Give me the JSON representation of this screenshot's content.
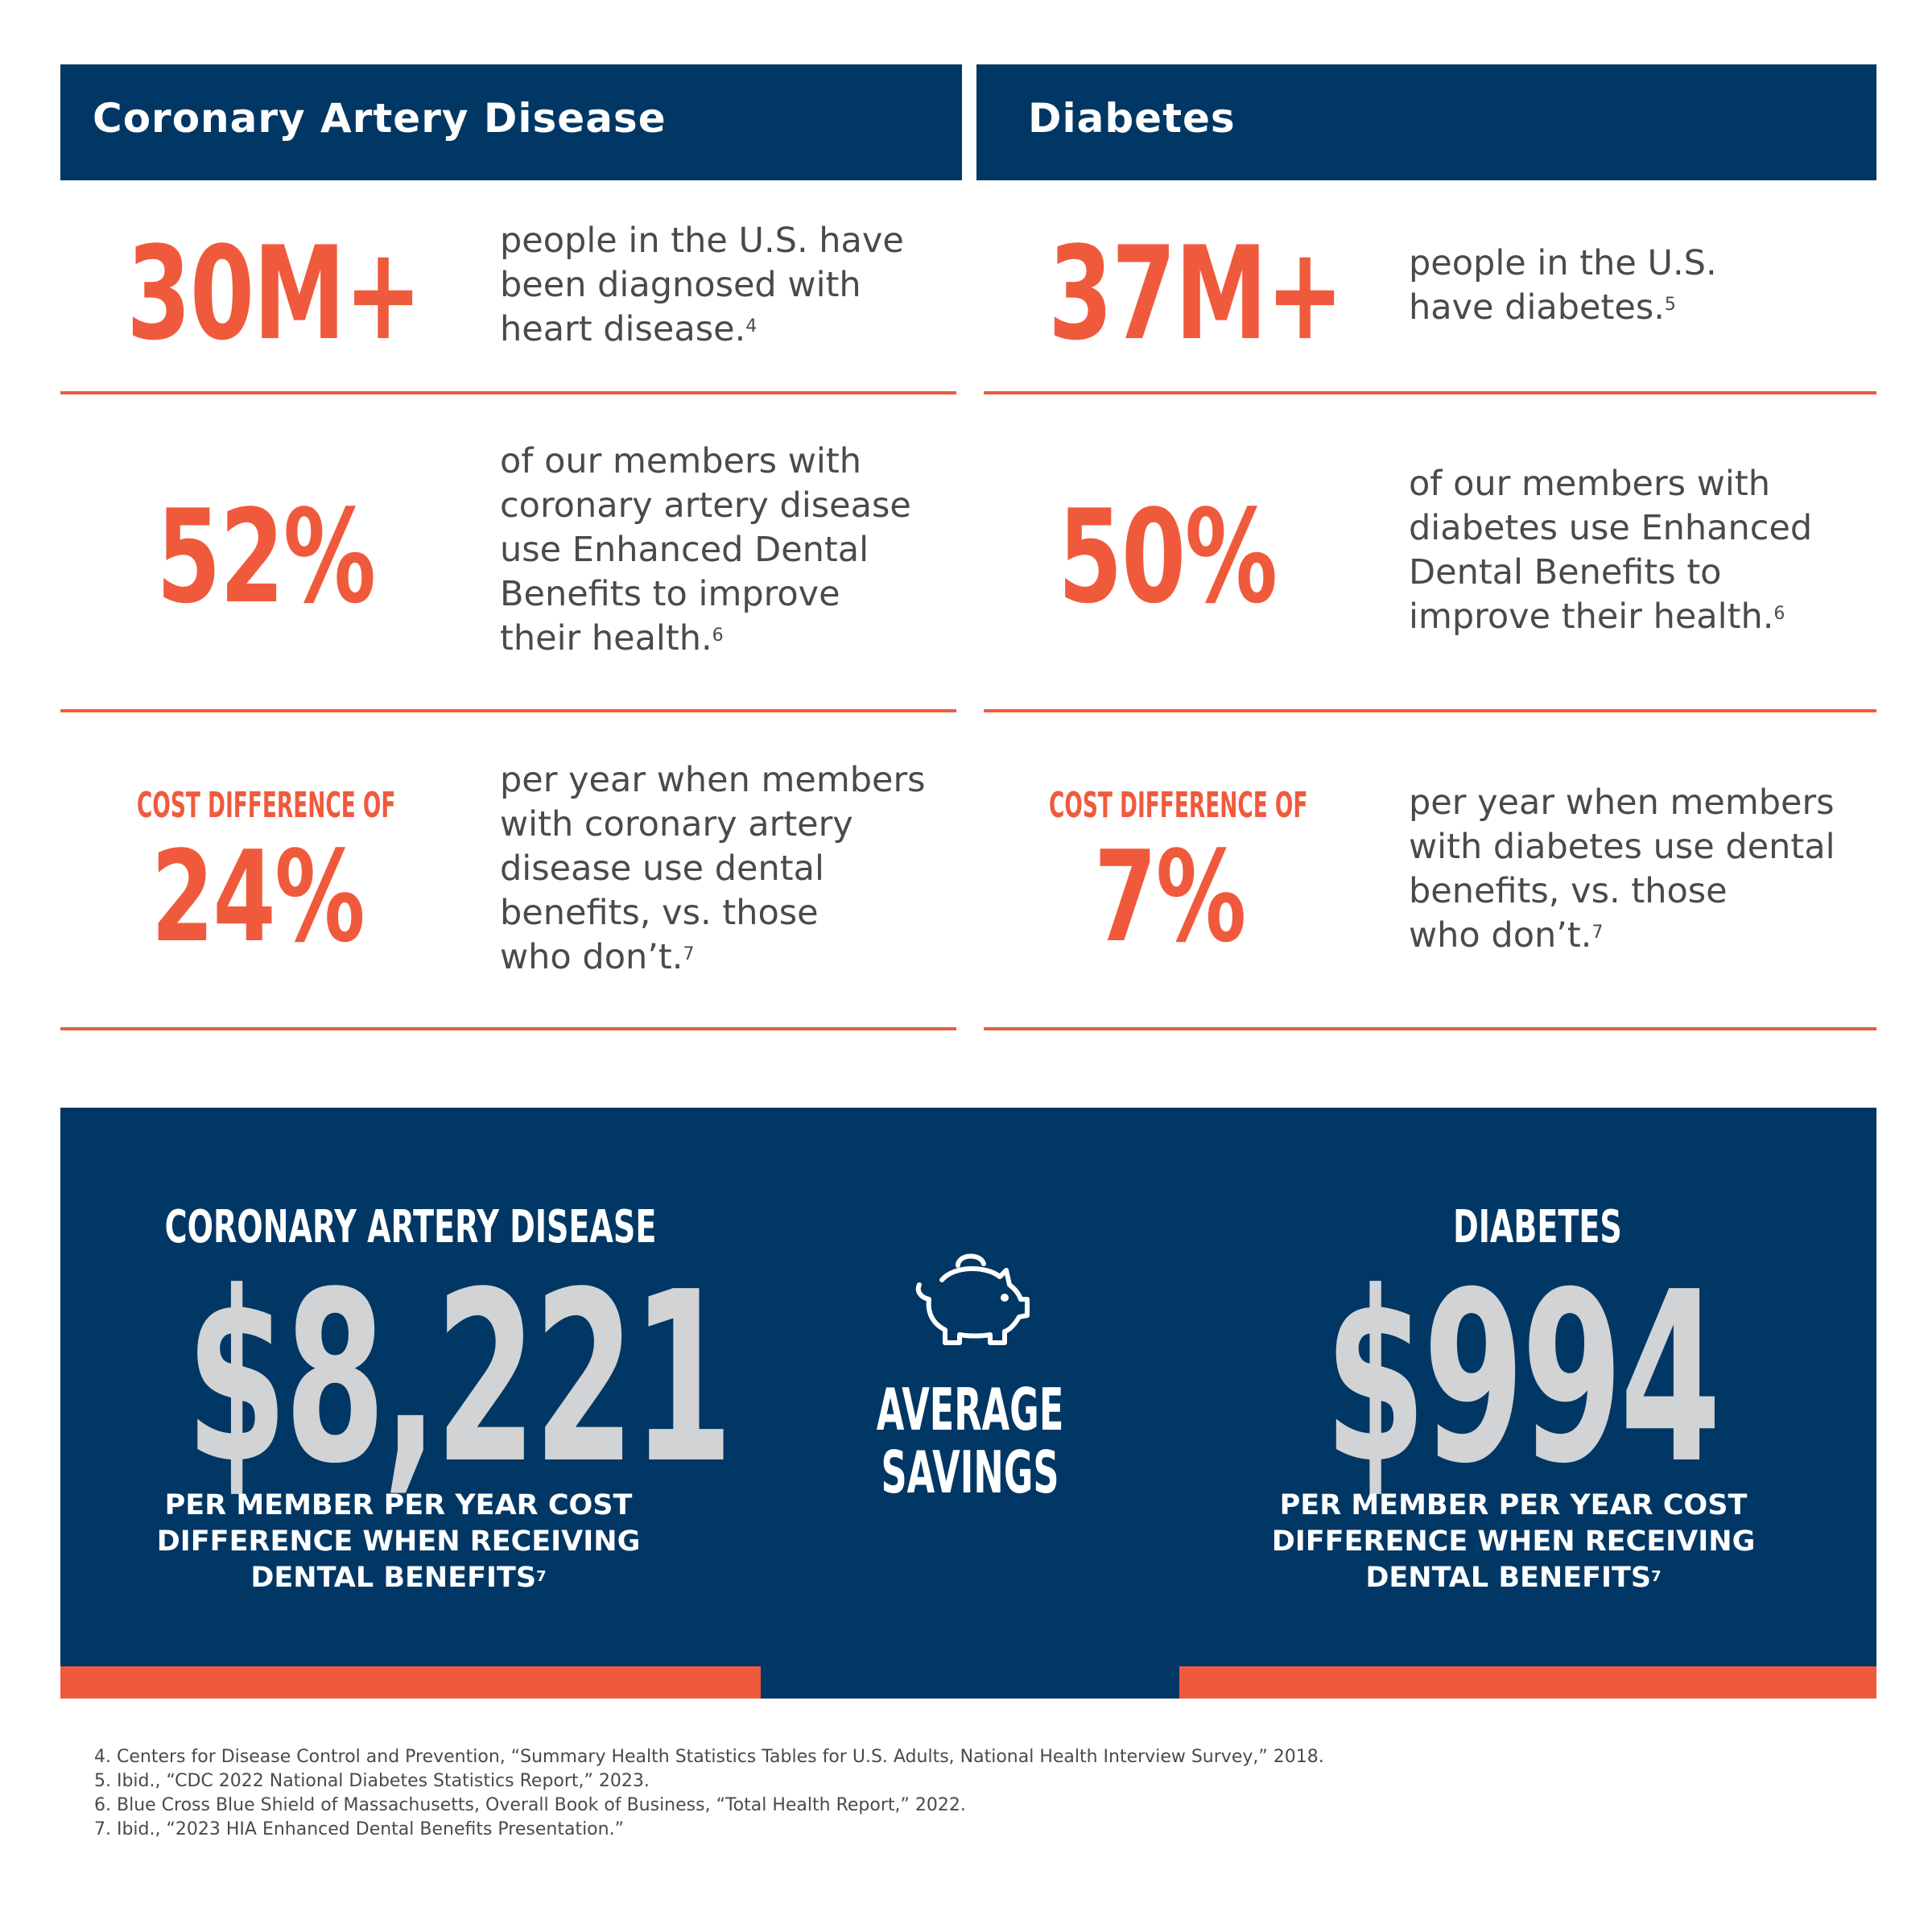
{
  "left": {
    "header": "Coronary Artery Disease",
    "stat1": {
      "value": "30M+",
      "lines": [
        "people in the U.S. have",
        "been diagnosed with",
        "heart disease."
      ],
      "ref": "4"
    },
    "stat2": {
      "value": "52%",
      "lines": [
        "of our members with",
        "coronary artery disease",
        "use Enhanced Dental",
        "Benefits to improve",
        "their health."
      ],
      "ref": "6"
    },
    "stat3": {
      "label": "COST DIFFERENCE OF",
      "value": "24%",
      "lines": [
        "per year when members",
        "with coronary artery",
        "disease use dental",
        "benefits, vs. those",
        "who don’t."
      ],
      "ref": "7"
    }
  },
  "right": {
    "header": "Diabetes",
    "stat1": {
      "value": "37M+",
      "lines": [
        "people in the U.S.",
        "have diabetes."
      ],
      "ref": "5"
    },
    "stat2": {
      "value": "50%",
      "lines": [
        "of our members with",
        "diabetes use Enhanced",
        "Dental Benefits to",
        "improve their health."
      ],
      "ref": "6"
    },
    "stat3": {
      "label": "COST DIFFERENCE OF",
      "value": "7%",
      "lines": [
        "per year when members",
        "with diabetes use dental",
        "benefits, vs. those",
        "who don’t."
      ],
      "ref": "7"
    }
  },
  "savings": {
    "center_icon": "piggy-bank-icon",
    "center_lines": [
      "AVERAGE",
      "SAVINGS"
    ],
    "left": {
      "title": "CORONARY ARTERY DISEASE",
      "amount": "$8,221",
      "caption": [
        "PER MEMBER PER YEAR COST",
        "DIFFERENCE WHEN RECEIVING",
        "DENTAL BENEFITS"
      ],
      "ref": "7"
    },
    "right": {
      "title": "DIABETES",
      "amount": "$994",
      "caption": [
        "PER MEMBER PER YEAR COST",
        "DIFFERENCE WHEN RECEIVING",
        "DENTAL BENEFITS"
      ],
      "ref": "7"
    }
  },
  "footnotes": [
    "4. Centers for Disease Control and Prevention, “Summary Health Statistics Tables for U.S. Adults, National Health Interview Survey,” 2018.",
    "5. Ibid., “CDC 2022 National Diabetes Statistics Report,” 2023.",
    "6. Blue Cross Blue Shield of Massachusetts, Overall Book of Business, “Total Health Report,” 2022.",
    "7. Ibid.,  “2023 HIA Enhanced Dental Benefits Presentation.”"
  ],
  "colors": {
    "navy": "#003764",
    "orange": "#f05a3c",
    "silver": "#d1d3d4",
    "text": "#4a4a4a"
  }
}
